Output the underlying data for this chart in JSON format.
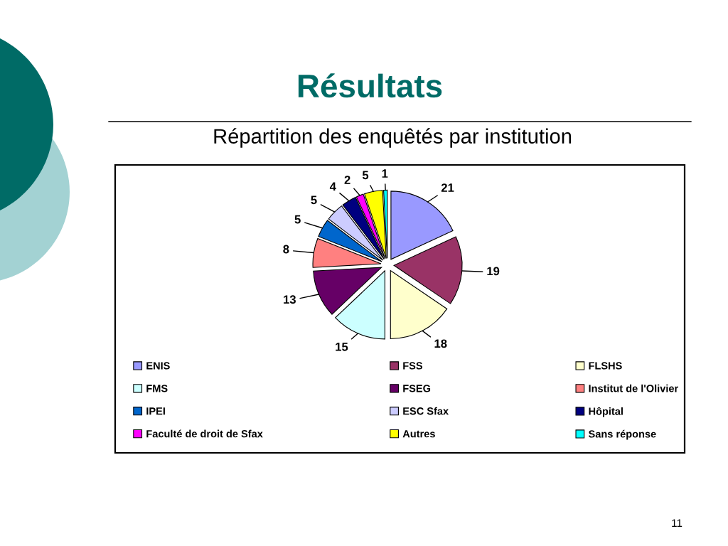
{
  "chart_data": {
    "type": "pie",
    "title": "Résultats",
    "subtitle": "Répartition des enquêtés par institution",
    "categories": [
      "ENIS",
      "FSS",
      "FLSHS",
      "FMS",
      "FSEG",
      "Institut de l'Olivier",
      "IPEI",
      "ESC Sfax",
      "Hôpital",
      "Faculté de droit de Sfax",
      "Autres",
      "Sans réponse"
    ],
    "values": [
      21,
      19,
      18,
      15,
      13,
      8,
      5,
      5,
      4,
      2,
      5,
      1
    ],
    "colors": [
      "#9999ff",
      "#993366",
      "#ffffcc",
      "#ccffff",
      "#660066",
      "#ff8080",
      "#0066cc",
      "#ccccff",
      "#000080",
      "#ff00ff",
      "#ffff00",
      "#00ffff"
    ],
    "data_labels": true,
    "legend": "bottom",
    "annotations": [
      "11"
    ]
  }
}
